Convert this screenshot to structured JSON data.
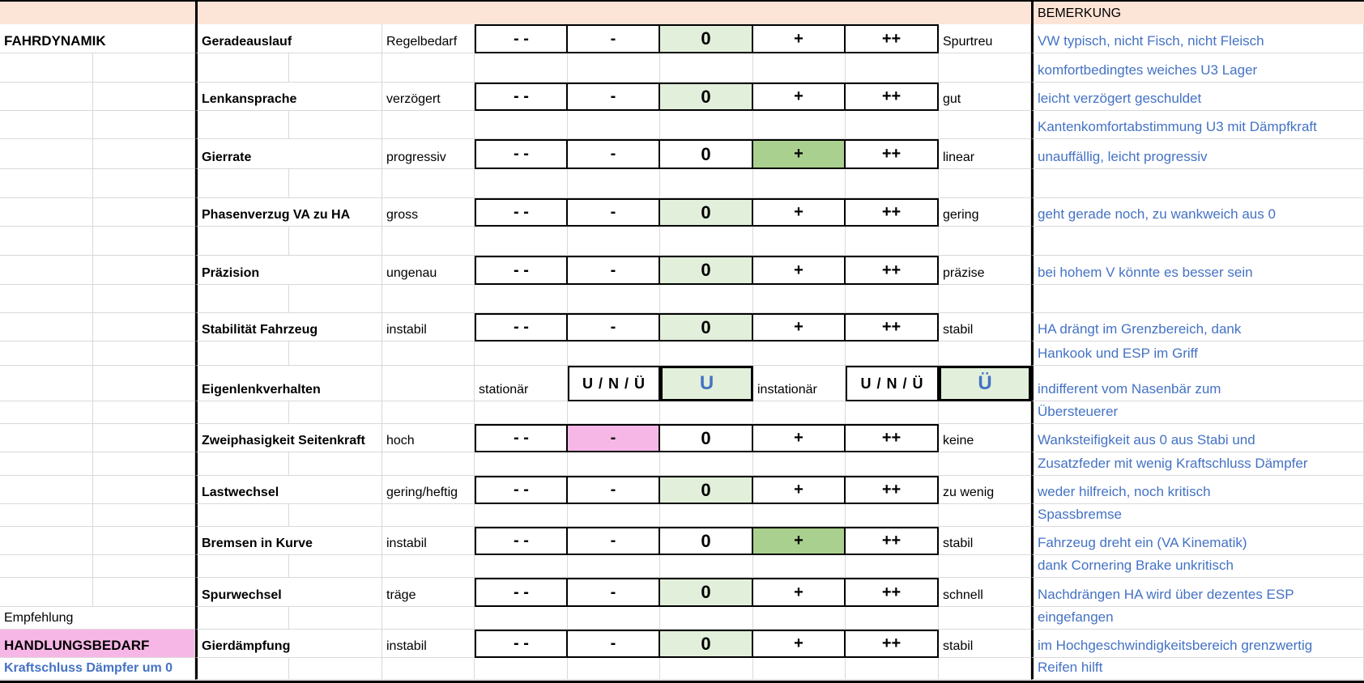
{
  "header": {
    "remark_title": "BEMERKUNG"
  },
  "left": {
    "section": "FAHRDYNAMIK",
    "recommendation_label": "Empfehlung",
    "recommendation": "HANDLUNGSBEDARF",
    "recommendation_note": "Kraftschluss Dämpfer um 0"
  },
  "colors": {
    "selected_light": "#e2efda",
    "selected_strong": "#a9d08e",
    "action_needed": "#f7b7e6",
    "header": "#fce4d6",
    "remark_text": "#4472c4"
  },
  "scale": [
    "- -",
    "-",
    "0",
    "+",
    "++"
  ],
  "criteria": [
    {
      "label": "Geradeauslauf",
      "low": "Regelbedarf",
      "high": "Spurtreu",
      "selected": 2,
      "highlight": "selected_light",
      "remark": "VW typisch, nicht Fisch, nicht Fleisch",
      "remark2": "komfortbedingtes weiches U3 Lager"
    },
    {
      "label": "Lenkansprache",
      "low": "verzögert",
      "high": "gut",
      "selected": 2,
      "highlight": "selected_light",
      "remark": "leicht verzögert geschuldet",
      "remark2": "Kantenkomfortabstimmung U3 mit Dämpfkraft"
    },
    {
      "label": "Gierrate",
      "low": "progressiv",
      "high": "linear",
      "selected": 3,
      "highlight": "selected_strong",
      "remark": "unauffällig, leicht progressiv",
      "remark2": ""
    },
    {
      "label": "Phasenverzug VA zu HA",
      "low": "gross",
      "high": "gering",
      "selected": 2,
      "highlight": "selected_light",
      "remark": "geht gerade noch, zu wankweich aus 0",
      "remark2": ""
    },
    {
      "label": "Präzision",
      "low": "ungenau",
      "high": "präzise",
      "selected": 2,
      "highlight": "selected_light",
      "remark": "bei hohem V könnte es besser sein",
      "remark2": ""
    },
    {
      "label": "Stabilität Fahrzeug",
      "low": "instabil",
      "high": "stabil",
      "selected": 2,
      "highlight": "selected_light",
      "remark": "HA drängt im Grenzbereich, dank",
      "remark2": "Hankook und ESP im Griff"
    },
    {
      "label": "Eigenlenkverhalten",
      "type": "steering",
      "stationary_label": "stationär",
      "stationary_options": "U / N / Ü",
      "stationary_value": "U",
      "instationary_label": "instationär",
      "instationary_options": "U / N / Ü",
      "instationary_value": "Ü",
      "remark": "indifferent vom Nasenbär zum",
      "remark2": "Übersteuerer"
    },
    {
      "label": "Zweiphasigkeit Seitenkraft",
      "low": "hoch",
      "high": "keine",
      "selected": 1,
      "highlight": "action_needed",
      "remark": "Wanksteifigkeit aus 0 aus Stabi und",
      "remark2": "Zusatzfeder mit wenig Kraftschluss Dämpfer"
    },
    {
      "label": "Lastwechsel",
      "low": "gering/heftig",
      "high": "zu wenig",
      "selected": 2,
      "highlight": "selected_light",
      "remark": "weder hilfreich, noch kritisch",
      "remark2": "Spassbremse"
    },
    {
      "label": "Bremsen in Kurve",
      "low": "instabil",
      "high": "stabil",
      "selected": 3,
      "highlight": "selected_strong",
      "remark": "Fahrzeug dreht ein (VA Kinematik)",
      "remark2": "dank Cornering Brake unkritisch"
    },
    {
      "label": "Spurwechsel",
      "low": "träge",
      "high": "schnell",
      "selected": 2,
      "highlight": "selected_light",
      "remark": "Nachdrängen HA wird über dezentes ESP",
      "remark2": "eingefangen"
    },
    {
      "label": "Gierdämpfung",
      "low": "instabil",
      "high": "stabil",
      "selected": 2,
      "highlight": "selected_light",
      "remark": "im Hochgeschwindigkeitsbereich grenzwertig",
      "remark2": "Reifen hilft"
    }
  ]
}
